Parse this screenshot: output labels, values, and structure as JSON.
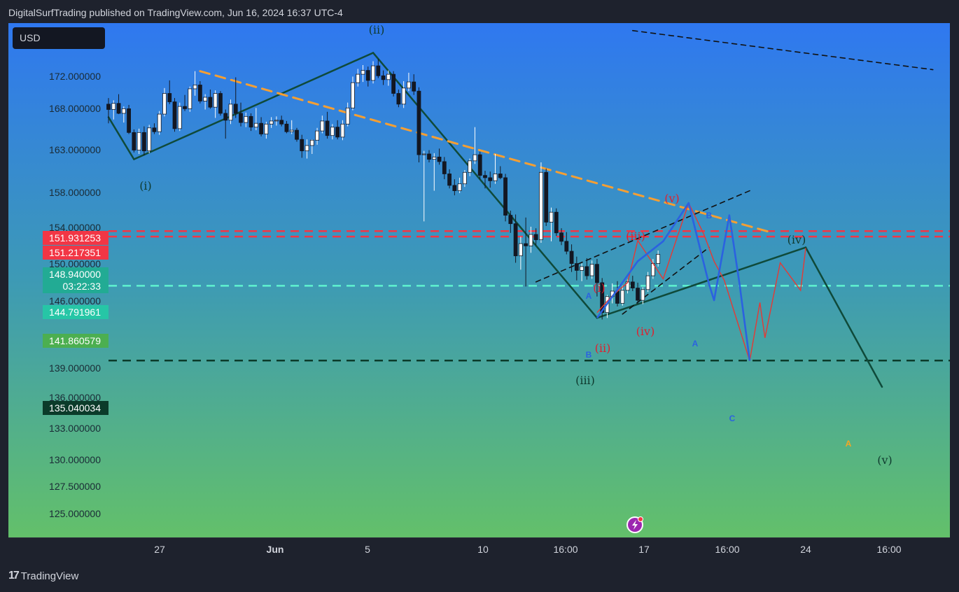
{
  "header": {
    "text": "DigitalSurfTrading published on TradingView.com, Jun 16, 2024 16:37 UTC-4"
  },
  "footer": {
    "logo_text": "17",
    "brand": "TradingView"
  },
  "currency_button": {
    "label": "USD"
  },
  "chart_data": {
    "type": "candlestick",
    "y_axis": {
      "ticks": [
        "172.000000",
        "168.000000",
        "163.000000",
        "158.000000",
        "154.000000",
        "150.000000",
        "146.000000",
        "139.000000",
        "136.000000",
        "133.000000",
        "130.000000",
        "127.500000",
        "125.000000"
      ],
      "price_tags": [
        {
          "label": "151.931253",
          "color": "#f23645"
        },
        {
          "label": "151.217351",
          "color": "#f23645"
        },
        {
          "label": "148.940000",
          "sub": "03:22:33",
          "color": "#22ab94"
        },
        {
          "label": "144.791961",
          "color": "#26c6a6"
        },
        {
          "label": "141.860579",
          "color": "#4caf50"
        },
        {
          "label": "135.040034",
          "color": "#0b3b2a"
        }
      ]
    },
    "x_axis": {
      "ticks": [
        {
          "label": "27",
          "bold": false
        },
        {
          "label": "Jun",
          "bold": true
        },
        {
          "label": "5",
          "bold": false
        },
        {
          "label": "10",
          "bold": false
        },
        {
          "label": "16:00",
          "bold": false
        },
        {
          "label": "17",
          "bold": false
        },
        {
          "label": "16:00",
          "bold": false
        },
        {
          "label": "24",
          "bold": false
        },
        {
          "label": "16:00",
          "bold": false
        }
      ]
    },
    "horizontal_levels": [
      {
        "price": 151.931253,
        "color": "#f23645",
        "style": "dashed"
      },
      {
        "price": 151.217351,
        "color": "#f23645",
        "style": "dashed"
      },
      {
        "price": 144.791961,
        "color": "#5ff2d0",
        "style": "dashed"
      },
      {
        "price": 135.040034,
        "color": "#0b3b2a",
        "style": "dashed"
      }
    ],
    "wave_labels": {
      "main": [
        "(i)",
        "(ii)",
        "(iii)",
        "(iv)",
        "(v)"
      ],
      "sub": [
        "(i)",
        "(ii)",
        "(iii)",
        "(iv)",
        "(v)"
      ],
      "abc": [
        "A",
        "B",
        "C",
        "A",
        "B",
        "A"
      ]
    },
    "candles": [
      [
        168.5,
        169.3,
        166.0,
        167.8
      ],
      [
        167.8,
        169.0,
        166.5,
        168.6
      ],
      [
        168.6,
        169.8,
        167.2,
        167.3
      ],
      [
        167.3,
        168.2,
        166.1,
        167.9
      ],
      [
        167.9,
        168.4,
        164.6,
        164.8
      ],
      [
        164.8,
        165.2,
        162.2,
        162.5
      ],
      [
        162.5,
        165.3,
        162.0,
        164.8
      ],
      [
        164.8,
        165.6,
        161.8,
        162.4
      ],
      [
        162.4,
        165.8,
        162.1,
        165.4
      ],
      [
        165.4,
        166.0,
        164.6,
        164.9
      ],
      [
        164.9,
        167.6,
        164.5,
        167.2
      ],
      [
        167.2,
        170.6,
        166.9,
        169.9
      ],
      [
        169.9,
        171.6,
        168.5,
        168.8
      ],
      [
        168.8,
        169.3,
        164.9,
        165.3
      ],
      [
        165.3,
        168.7,
        165.0,
        168.2
      ],
      [
        168.2,
        169.7,
        167.6,
        167.9
      ],
      [
        167.9,
        170.8,
        167.5,
        170.5
      ],
      [
        170.5,
        172.8,
        169.6,
        171.0
      ],
      [
        171.0,
        171.5,
        168.6,
        168.9
      ],
      [
        168.9,
        169.8,
        167.8,
        169.4
      ],
      [
        169.4,
        170.4,
        167.9,
        168.1
      ],
      [
        168.1,
        170.3,
        166.7,
        169.9
      ],
      [
        169.9,
        170.2,
        167.0,
        167.3
      ],
      [
        167.3,
        167.8,
        164.0,
        166.4
      ],
      [
        166.4,
        169.1,
        165.9,
        168.5
      ],
      [
        168.5,
        172.0,
        166.7,
        167.3
      ],
      [
        167.3,
        168.7,
        165.6,
        166.1
      ],
      [
        166.1,
        167.4,
        165.5,
        166.9
      ],
      [
        166.9,
        167.3,
        165.0,
        165.5
      ],
      [
        165.5,
        168.0,
        165.1,
        166.0
      ],
      [
        166.0,
        166.8,
        164.3,
        164.6
      ],
      [
        164.6,
        166.2,
        164.0,
        165.9
      ],
      [
        165.9,
        166.8,
        165.4,
        166.3
      ],
      [
        166.3,
        166.9,
        165.7,
        166.4
      ],
      [
        166.4,
        167.0,
        165.6,
        165.9
      ],
      [
        165.9,
        166.3,
        164.7,
        164.9
      ],
      [
        164.9,
        166.4,
        164.6,
        165.1
      ],
      [
        165.1,
        165.4,
        163.6,
        163.9
      ],
      [
        163.9,
        164.5,
        161.5,
        162.4
      ],
      [
        162.4,
        163.9,
        161.4,
        163.1
      ],
      [
        163.1,
        163.9,
        162.0,
        163.8
      ],
      [
        163.8,
        165.4,
        163.2,
        165.0
      ],
      [
        165.0,
        167.0,
        164.7,
        166.3
      ],
      [
        166.3,
        167.5,
        164.0,
        164.4
      ],
      [
        164.4,
        165.9,
        163.9,
        165.5
      ],
      [
        165.5,
        166.4,
        163.9,
        164.2
      ],
      [
        164.2,
        166.4,
        163.8,
        165.9
      ],
      [
        165.9,
        168.7,
        165.6,
        168.0
      ],
      [
        168.0,
        172.1,
        167.7,
        171.3
      ],
      [
        171.3,
        173.1,
        170.8,
        172.4
      ],
      [
        172.4,
        173.6,
        171.4,
        172.9
      ],
      [
        172.9,
        173.4,
        170.8,
        171.6
      ],
      [
        171.6,
        174.1,
        171.2,
        173.5
      ],
      [
        173.5,
        174.4,
        171.9,
        172.2
      ],
      [
        172.2,
        172.9,
        171.0,
        171.7
      ],
      [
        171.7,
        172.9,
        170.9,
        172.4
      ],
      [
        172.4,
        172.8,
        169.5,
        169.9
      ],
      [
        169.9,
        170.4,
        168.1,
        168.5
      ],
      [
        168.5,
        171.5,
        168.0,
        170.6
      ],
      [
        170.6,
        172.6,
        170.2,
        171.4
      ],
      [
        171.4,
        172.4,
        169.7,
        170.2
      ],
      [
        170.2,
        170.7,
        160.9,
        161.9
      ],
      [
        161.9,
        162.4,
        153.2,
        162.0
      ],
      [
        162.0,
        162.5,
        160.9,
        161.3
      ],
      [
        161.3,
        162.1,
        157.2,
        161.6
      ],
      [
        161.6,
        162.7,
        160.6,
        161.0
      ],
      [
        161.0,
        161.6,
        158.7,
        159.4
      ],
      [
        159.4,
        160.0,
        157.5,
        157.9
      ],
      [
        157.9,
        158.7,
        156.6,
        157.2
      ],
      [
        157.2,
        158.9,
        156.9,
        158.1
      ],
      [
        158.1,
        159.9,
        157.7,
        159.6
      ],
      [
        159.6,
        161.4,
        159.1,
        161.1
      ],
      [
        161.1,
        165.5,
        160.7,
        161.9
      ],
      [
        161.9,
        162.3,
        158.7,
        159.2
      ],
      [
        159.2,
        159.8,
        157.5,
        158.9
      ],
      [
        158.9,
        159.7,
        157.6,
        158.5
      ],
      [
        158.5,
        162.0,
        158.1,
        159.4
      ],
      [
        159.4,
        160.4,
        158.7,
        158.9
      ],
      [
        158.9,
        159.4,
        153.2,
        154.0
      ],
      [
        154.0,
        154.6,
        151.7,
        152.9
      ],
      [
        152.9,
        154.1,
        147.8,
        148.7
      ],
      [
        148.7,
        151.2,
        146.9,
        150.3
      ],
      [
        150.3,
        153.7,
        144.7,
        150.0
      ],
      [
        150.0,
        152.5,
        149.1,
        151.5
      ],
      [
        151.5,
        152.3,
        150.1,
        150.8
      ],
      [
        150.8,
        160.9,
        150.4,
        159.6
      ],
      [
        159.6,
        160.1,
        152.6,
        153.1
      ],
      [
        153.1,
        155.0,
        150.6,
        154.4
      ],
      [
        154.4,
        154.9,
        151.3,
        151.7
      ],
      [
        151.7,
        152.3,
        150.1,
        150.6
      ],
      [
        150.6,
        151.8,
        148.9,
        149.3
      ],
      [
        149.3,
        150.2,
        146.6,
        147.7
      ],
      [
        147.7,
        148.6,
        145.5,
        146.8
      ],
      [
        146.8,
        147.7,
        145.4,
        147.3
      ],
      [
        147.3,
        148.4,
        145.6,
        146.1
      ],
      [
        146.1,
        148.1,
        145.7,
        147.6
      ],
      [
        147.6,
        148.3,
        143.4,
        145.2
      ],
      [
        145.2,
        145.8,
        140.4,
        141.3
      ],
      [
        141.3,
        143.6,
        140.6,
        143.4
      ],
      [
        143.4,
        145.1,
        142.5,
        144.1
      ],
      [
        144.1,
        145.4,
        142.1,
        142.5
      ],
      [
        142.5,
        144.8,
        142.2,
        144.2
      ],
      [
        144.2,
        145.6,
        143.8,
        145.3
      ],
      [
        145.3,
        146.1,
        144.1,
        144.5
      ],
      [
        144.5,
        145.2,
        142.5,
        142.9
      ],
      [
        142.9,
        144.6,
        142.4,
        144.3
      ],
      [
        144.3,
        146.6,
        144.0,
        146.1
      ],
      [
        146.1,
        148.3,
        145.7,
        147.7
      ],
      [
        147.7,
        149.4,
        147.3,
        148.9
      ]
    ],
    "trendlines": [
      {
        "from": [
          0,
          166.8
        ],
        "to": [
          5,
          161.3
        ],
        "color": "#0f4a3a"
      },
      {
        "from": [
          5,
          161.3
        ],
        "to": [
          52,
          175.2
        ],
        "color": "#0f4a3a"
      },
      {
        "from": [
          52,
          175.2
        ],
        "to": [
          96,
          140.6
        ],
        "color": "#0f4a3a"
      },
      {
        "from": [
          96,
          140.6
        ],
        "to": [
          137,
          149.8
        ],
        "color": "#0f4a3a"
      },
      {
        "from": [
          137,
          149.8
        ],
        "to": [
          152,
          131.6
        ],
        "color": "#0f4a3a"
      },
      {
        "from": [
          18,
          172.8
        ],
        "to": [
          130,
          151.8
        ],
        "color": "#f59f33",
        "dash": true
      },
      {
        "from": [
          84,
          145.3
        ],
        "to": [
          126,
          157.2
        ],
        "color": "#111111",
        "dash": true
      },
      {
        "from": [
          101,
          141.1
        ],
        "to": [
          118,
          149.8
        ],
        "color": "#111111",
        "dash": true
      },
      {
        "from": [
          103,
          178.1
        ],
        "to": [
          162,
          173.0
        ],
        "color": "#111111",
        "dash": true
      }
    ],
    "blue_path": [
      [
        96,
        140.6
      ],
      [
        104,
        148.0
      ],
      [
        109,
        150.6
      ],
      [
        114,
        155.6
      ],
      [
        118,
        145.0
      ],
      [
        119,
        142.9
      ],
      [
        122,
        154.0
      ],
      [
        124,
        145.0
      ],
      [
        126,
        135.0
      ]
    ],
    "red_path": [
      [
        96,
        141.3
      ],
      [
        99,
        143.5
      ],
      [
        102,
        145.2
      ],
      [
        104,
        150.7
      ],
      [
        109,
        145.7
      ],
      [
        114,
        155.6
      ],
      [
        117,
        151.5
      ],
      [
        119,
        148.0
      ],
      [
        121,
        145.5
      ],
      [
        126,
        135.0
      ],
      [
        128,
        142.6
      ],
      [
        129,
        138.0
      ],
      [
        132,
        147.8
      ],
      [
        136,
        144.2
      ],
      [
        137,
        149.7
      ]
    ]
  }
}
